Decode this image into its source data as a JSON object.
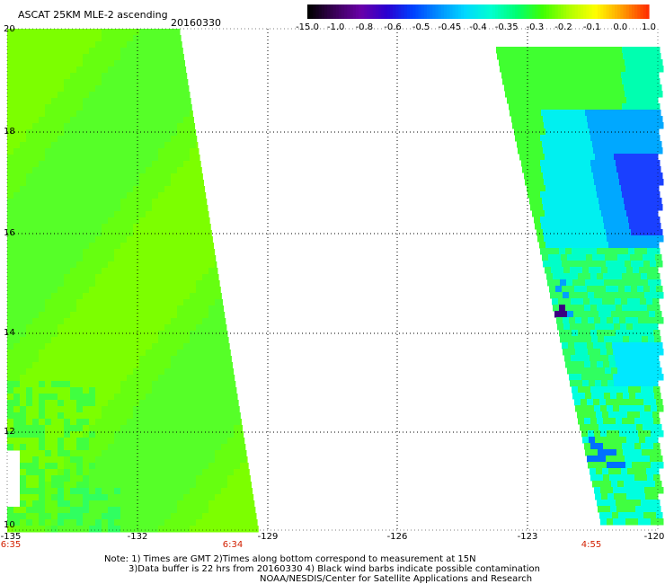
{
  "header": {
    "title": "ASCAT 25KM MLE-2 ascending",
    "date": "20160330"
  },
  "colorbar": {
    "labels": [
      "-15.0",
      "-1.0",
      "-0.8",
      "-0.6",
      "-0.5",
      "-0.45",
      "-0.4",
      "-0.35",
      "-0.3",
      "-0.2",
      "-0.1",
      "0.0",
      "1.0"
    ],
    "colors": [
      "#000000",
      "#3a0058",
      "#6a00a8",
      "#2a00d0",
      "#0040ff",
      "#0090ff",
      "#00d8ff",
      "#00ffd0",
      "#00ff70",
      "#40ff00",
      "#b0ff00",
      "#ffff00",
      "#ffa000",
      "#ff3000"
    ]
  },
  "axes": {
    "y_ticks": [
      "20",
      "18",
      "16",
      "14",
      "12",
      "10"
    ],
    "x_ticks": [
      "-135",
      "-132",
      "-129",
      "-126",
      "-123",
      "-120"
    ],
    "time_labels": [
      "6:35",
      "6:34",
      "4:55"
    ]
  },
  "notes": {
    "line1": "Note: 1) Times are GMT 2)Times along bottom correspond to measurement at 15N",
    "line2": "3)Data buffer is 22 hrs from 20160330 4) Black wind barbs indicate possible contamination",
    "line3": "NOAA/NESDIS/Center for Satellite Applications and Research"
  }
}
